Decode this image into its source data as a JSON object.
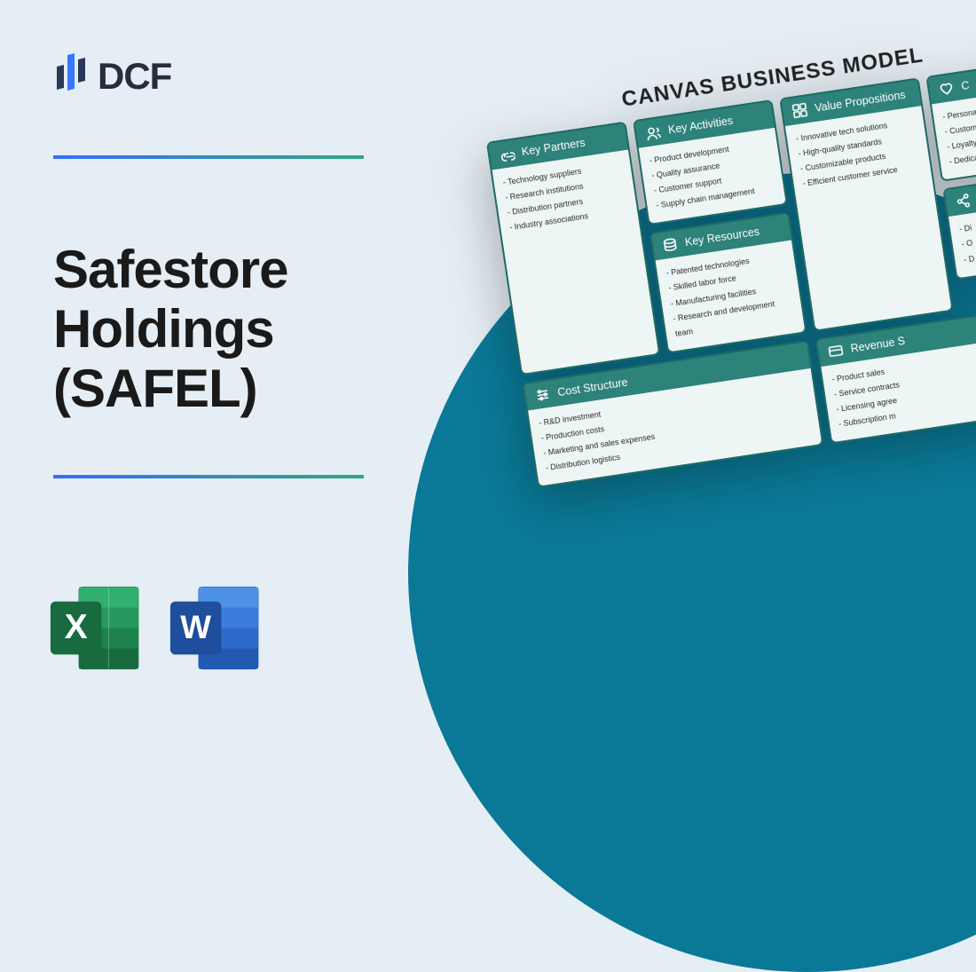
{
  "colors": {
    "bg": "#e5eef4",
    "circle": "#0a7997",
    "logo_text": "#242e3d",
    "logo_dark": "#2a3959",
    "logo_blue": "#3776ff",
    "grad_from": "#356dff",
    "grad_to": "#2fa87e",
    "block_border": "#1e6b64",
    "block_head": "#2d8279",
    "block_bg": "#eef5f5"
  },
  "logo_text": "DCF",
  "title": "Safestore Holdings (SAFEL)",
  "apps": {
    "excel_letter": "X",
    "word_letter": "W"
  },
  "canvas": {
    "title": "CANVAS BUSINESS MODEL",
    "blocks": {
      "key_partners": {
        "label": "Key Partners",
        "items": [
          "Technology suppliers",
          "Research institutions",
          "Distribution partners",
          "Industry associations"
        ]
      },
      "key_activities": {
        "label": "Key Activities",
        "items": [
          "Product development",
          "Quality assurance",
          "Customer support",
          "Supply chain management"
        ]
      },
      "key_resources": {
        "label": "Key Resources",
        "items": [
          "Patented technologies",
          "Skilled labor force",
          "Manufacturing facilities",
          "Research and development team"
        ]
      },
      "value_propositions": {
        "label": "Value Propositions",
        "items": [
          "Innovative tech solutions",
          "High-quality standards",
          "Customizable products",
          "Efficient customer service"
        ]
      },
      "customer_relationships": {
        "label": "C",
        "items": [
          "Personalize",
          "Customer",
          "Loyalty p",
          "Dedica"
        ]
      },
      "channels": {
        "label": "",
        "items": [
          "Di",
          "O",
          "D"
        ]
      },
      "cost_structure": {
        "label": "Cost Structure",
        "items": [
          "R&D investment",
          "Production costs",
          "Marketing and sales expenses",
          "Distribution logistics"
        ]
      },
      "revenue_streams": {
        "label": "Revenue S",
        "items": [
          "Product sales",
          "Service contracts",
          "Licensing agree",
          "Subscription m"
        ]
      }
    }
  }
}
